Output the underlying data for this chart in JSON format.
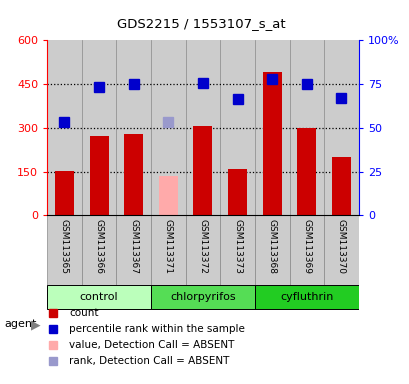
{
  "title": "GDS2215 / 1553107_s_at",
  "samples": [
    "GSM113365",
    "GSM113366",
    "GSM113367",
    "GSM113371",
    "GSM113372",
    "GSM113373",
    "GSM113368",
    "GSM113369",
    "GSM113370"
  ],
  "bar_values": [
    152,
    272,
    278,
    null,
    308,
    160,
    490,
    298,
    200
  ],
  "bar_absent_values": [
    null,
    null,
    null,
    135,
    null,
    null,
    null,
    null,
    null
  ],
  "bar_color_present": "#cc0000",
  "bar_color_absent": "#ffaaaa",
  "rank_values": [
    320,
    440,
    450,
    null,
    455,
    400,
    468,
    450,
    403
  ],
  "rank_absent_values": [
    null,
    null,
    null,
    320,
    null,
    null,
    null,
    null,
    null
  ],
  "rank_color_present": "#0000cc",
  "rank_color_absent": "#9999cc",
  "ylim_left": [
    0,
    600
  ],
  "ylim_right": [
    0,
    100
  ],
  "yticks_left": [
    0,
    150,
    300,
    450,
    600
  ],
  "ytick_labels_left": [
    "0",
    "150",
    "300",
    "450",
    "600"
  ],
  "ytick_labels_right": [
    "0",
    "25",
    "50",
    "75",
    "100%"
  ],
  "groups": [
    {
      "label": "control",
      "indices": [
        0,
        1,
        2
      ],
      "color": "#bbffbb"
    },
    {
      "label": "chlorpyrifos",
      "indices": [
        3,
        4,
        5
      ],
      "color": "#55dd55"
    },
    {
      "label": "cyfluthrin",
      "indices": [
        6,
        7,
        8
      ],
      "color": "#22cc22"
    }
  ],
  "agent_label": "agent",
  "legend_items": [
    {
      "label": "count",
      "color": "#cc0000"
    },
    {
      "label": "percentile rank within the sample",
      "color": "#0000cc"
    },
    {
      "label": "value, Detection Call = ABSENT",
      "color": "#ffaaaa"
    },
    {
      "label": "rank, Detection Call = ABSENT",
      "color": "#9999cc"
    }
  ],
  "bar_width": 0.55,
  "marker_size": 7,
  "cell_bg_color": "#cccccc",
  "plot_bg_color": "#ffffff",
  "cell_line_color": "#888888"
}
